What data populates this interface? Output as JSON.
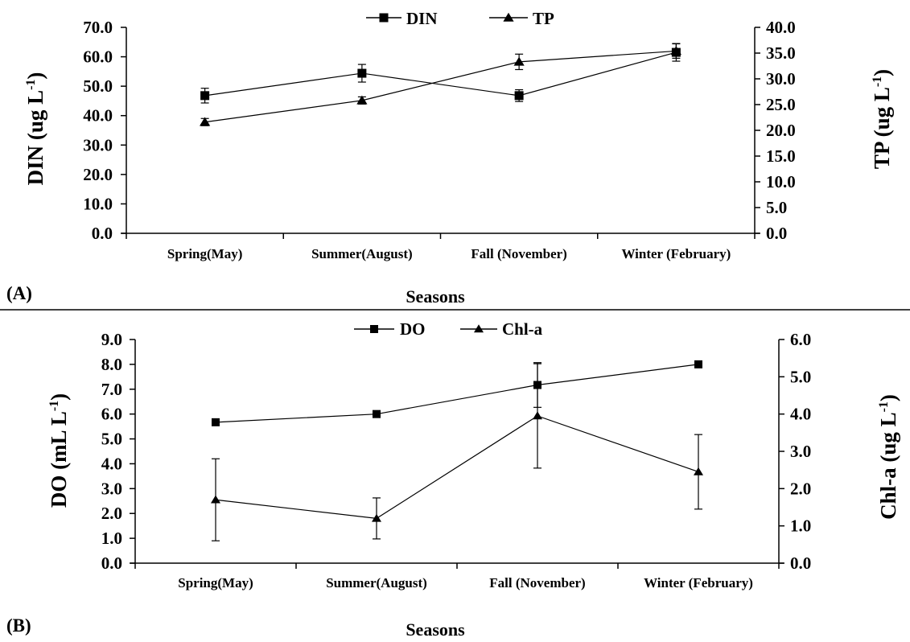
{
  "chart_data": [
    {
      "type": "line",
      "panel_label": "(A)",
      "categories": [
        "Spring(May)",
        "Summer(August)",
        "Fall (November)",
        "Winter (February)"
      ],
      "xlabel": "Seasons",
      "left_axis": {
        "label_base": "DIN  (ug L",
        "label_exp": "-1",
        "label_close": ")",
        "ylim": [
          0,
          70
        ],
        "step": 10
      },
      "right_axis": {
        "label_base": "TP (ug L",
        "label_exp": "-1",
        "label_close": ")",
        "ylim": [
          0,
          40
        ],
        "step": 5
      },
      "legend_position": "top-center",
      "series": [
        {
          "name": "DIN",
          "axis": "left",
          "marker": "square",
          "values": [
            46.8,
            54.4,
            46.8,
            61.5
          ],
          "errors": [
            2.5,
            3.0,
            2.0,
            3.0
          ]
        },
        {
          "name": "TP",
          "axis": "right",
          "marker": "triangle",
          "values": [
            21.6,
            25.8,
            33.3,
            35.4
          ],
          "errors": [
            0.7,
            0.7,
            1.5,
            1.4
          ]
        }
      ]
    },
    {
      "type": "line",
      "panel_label": "(B)",
      "categories": [
        "Spring(May)",
        "Summer(August)",
        "Fall (November)",
        "Winter (February)"
      ],
      "xlabel": "Seasons",
      "left_axis": {
        "label_base": "DO (mL L",
        "label_exp": "-1",
        "label_close": ")",
        "ylim": [
          0,
          9
        ],
        "step": 1
      },
      "right_axis": {
        "label_base": "Chl-a  (ug L",
        "label_exp": "-1",
        "label_close": ")",
        "ylim": [
          0,
          6
        ],
        "step": 1
      },
      "legend_position": "top-center",
      "series": [
        {
          "name": "DO",
          "axis": "left",
          "marker": "square",
          "values": [
            5.67,
            6.0,
            7.17,
            8.0
          ],
          "errors": [
            0.1,
            0.1,
            0.9,
            0.1
          ]
        },
        {
          "name": "Chl-a",
          "axis": "right",
          "marker": "triangle",
          "values": [
            1.7,
            1.2,
            3.95,
            2.45
          ],
          "errors": [
            1.1,
            0.55,
            1.4,
            1.0
          ]
        }
      ]
    }
  ]
}
